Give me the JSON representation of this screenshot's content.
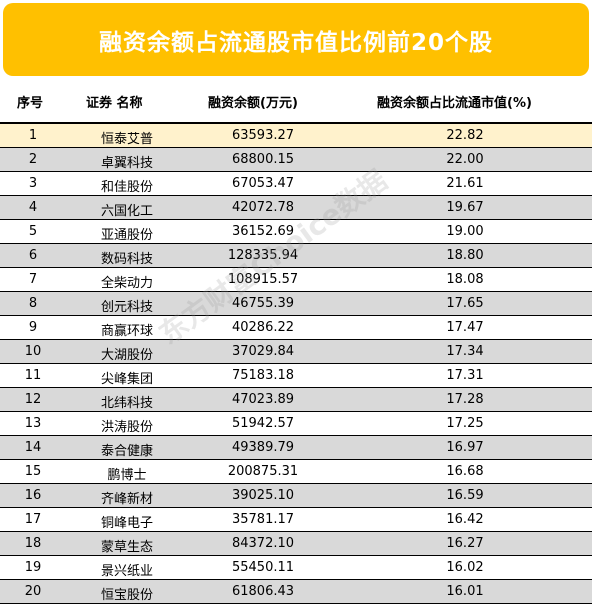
{
  "title": "融资余额占流通股市值比例前20个股",
  "columns": {
    "idx": "序号",
    "name": "证券 名称",
    "balance": "融资余额(万元)",
    "ratio": "融资余额占比流通市值(%)"
  },
  "rows": [
    {
      "idx": "1",
      "name": "恒泰艾普",
      "balance": "63593.27",
      "ratio": "22.82"
    },
    {
      "idx": "2",
      "name": "卓翼科技",
      "balance": "68800.15",
      "ratio": "22.00"
    },
    {
      "idx": "3",
      "name": "和佳股份",
      "balance": "67053.47",
      "ratio": "21.61"
    },
    {
      "idx": "4",
      "name": "六国化工",
      "balance": "42072.78",
      "ratio": "19.67"
    },
    {
      "idx": "5",
      "name": "亚通股份",
      "balance": "36152.69",
      "ratio": "19.00"
    },
    {
      "idx": "6",
      "name": "数码科技",
      "balance": "128335.94",
      "ratio": "18.80"
    },
    {
      "idx": "7",
      "name": "全柴动力",
      "balance": "108915.57",
      "ratio": "18.08"
    },
    {
      "idx": "8",
      "name": "创元科技",
      "balance": "46755.39",
      "ratio": "17.65"
    },
    {
      "idx": "9",
      "name": "商赢环球",
      "balance": "40286.22",
      "ratio": "17.47"
    },
    {
      "idx": "10",
      "name": "大湖股份",
      "balance": "37029.84",
      "ratio": "17.34"
    },
    {
      "idx": "11",
      "name": "尖峰集团",
      "balance": "75183.18",
      "ratio": "17.31"
    },
    {
      "idx": "12",
      "name": "北纬科技",
      "balance": "47023.89",
      "ratio": "17.28"
    },
    {
      "idx": "13",
      "name": "洪涛股份",
      "balance": "51942.57",
      "ratio": "17.25"
    },
    {
      "idx": "14",
      "name": "泰合健康",
      "balance": "49389.79",
      "ratio": "16.97"
    },
    {
      "idx": "15",
      "name": "鹏博士",
      "balance": "200875.31",
      "ratio": "16.68"
    },
    {
      "idx": "16",
      "name": "齐峰新材",
      "balance": "39025.10",
      "ratio": "16.59"
    },
    {
      "idx": "17",
      "name": "铜峰电子",
      "balance": "35781.17",
      "ratio": "16.42"
    },
    {
      "idx": "18",
      "name": "蒙草生态",
      "balance": "84372.10",
      "ratio": "16.27"
    },
    {
      "idx": "19",
      "name": "景兴纸业",
      "balance": "55450.11",
      "ratio": "16.02"
    },
    {
      "idx": "20",
      "name": "恒宝股份",
      "balance": "61806.43",
      "ratio": "16.01"
    }
  ],
  "watermark": "东方财富Choice数据",
  "colors": {
    "title_bg": "#ffc000",
    "highlight_row": "#fff2cc",
    "alt_row": "#d9d9d9"
  }
}
